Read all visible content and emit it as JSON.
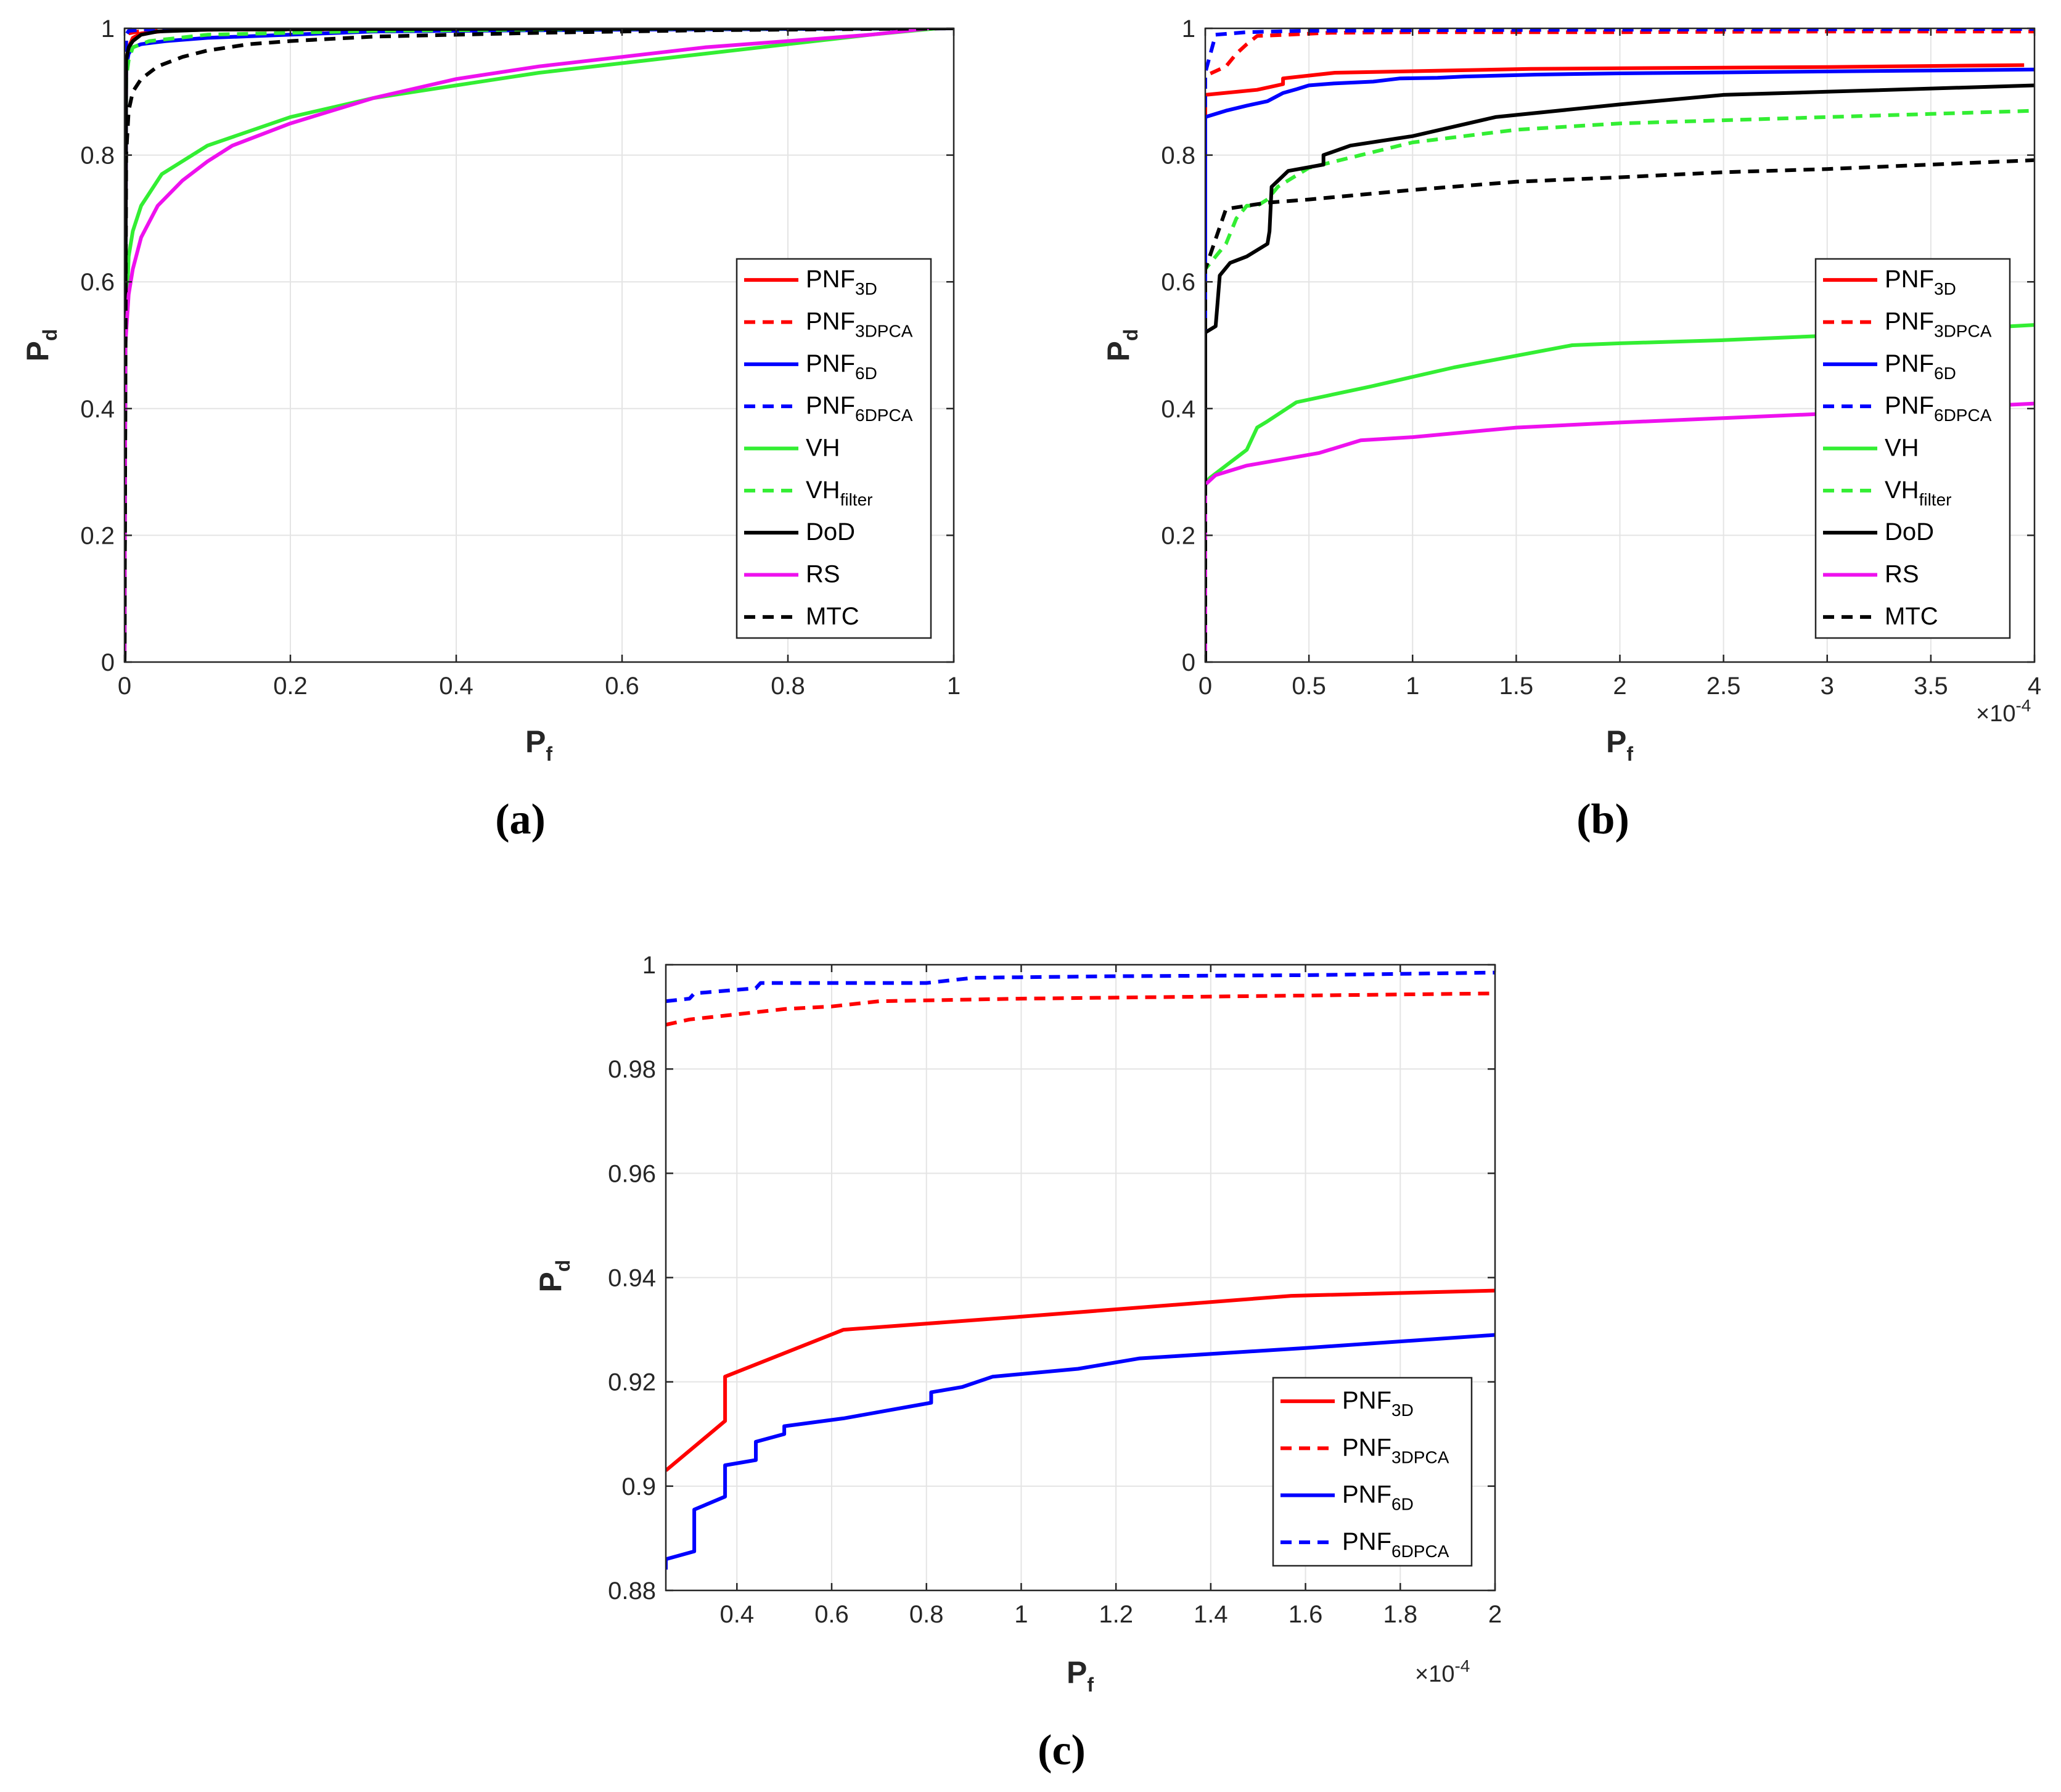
{
  "colors": {
    "red": "#ff0000",
    "blue": "#0000ff",
    "green": "#33ee33",
    "black": "#000000",
    "magenta": "#ee11ee",
    "grid": "#e4e4e4",
    "axis": "#262626"
  },
  "chart_data": [
    {
      "id": "a",
      "caption": "(a)",
      "type": "line",
      "xlabel": "P",
      "xlabel_sub": "f",
      "ylabel": "P",
      "ylabel_sub": "d",
      "xlim": [
        0,
        1
      ],
      "ylim": [
        0,
        1
      ],
      "xticks": [
        0,
        0.2,
        0.4,
        0.6,
        0.8,
        1
      ],
      "xtick_labels": [
        "0",
        "0.2",
        "0.4",
        "0.6",
        "0.8",
        "1"
      ],
      "yticks": [
        0,
        0.2,
        0.4,
        0.6,
        0.8,
        1
      ],
      "ytick_labels": [
        "0",
        "0.2",
        "0.4",
        "0.6",
        "0.8",
        "1"
      ],
      "exponent_label": "",
      "grid": true,
      "legend_position": "right",
      "series": [
        {
          "name": "PNF",
          "sub": "3D",
          "color": "red",
          "dashed": false,
          "x": [
            0,
            0.002,
            0.005,
            0.01,
            0.02,
            0.05,
            0.1,
            0.3,
            0.6,
            1
          ],
          "y": [
            0,
            0.95,
            0.97,
            0.985,
            0.992,
            0.996,
            0.998,
            0.999,
            1.0,
            1.0
          ]
        },
        {
          "name": "PNF",
          "sub": "3DPCA",
          "color": "red",
          "dashed": true,
          "x": [
            0,
            0.002,
            0.005,
            0.02,
            0.1,
            0.5,
            1
          ],
          "y": [
            0,
            0.985,
            0.992,
            0.996,
            0.998,
            0.999,
            1.0
          ]
        },
        {
          "name": "PNF",
          "sub": "6D",
          "color": "blue",
          "dashed": false,
          "x": [
            0,
            0.002,
            0.005,
            0.01,
            0.02,
            0.05,
            0.1,
            0.2,
            0.3,
            0.6,
            1
          ],
          "y": [
            0,
            0.94,
            0.96,
            0.97,
            0.975,
            0.98,
            0.985,
            0.99,
            0.995,
            0.998,
            1.0
          ]
        },
        {
          "name": "PNF",
          "sub": "6DPCA",
          "color": "blue",
          "dashed": true,
          "x": [
            0,
            0.002,
            0.005,
            0.02,
            0.1,
            0.5,
            1
          ],
          "y": [
            0,
            0.99,
            0.996,
            0.998,
            0.999,
            1.0,
            1.0
          ]
        },
        {
          "name": "VH",
          "sub": "",
          "color": "green",
          "dashed": false,
          "x": [
            0,
            0.001,
            0.005,
            0.01,
            0.02,
            0.045,
            0.1,
            0.2,
            0.3,
            0.4,
            0.5,
            0.6,
            0.7,
            0.8,
            0.9,
            0.98
          ],
          "y": [
            0,
            0.5,
            0.64,
            0.68,
            0.72,
            0.77,
            0.815,
            0.86,
            0.89,
            0.91,
            0.93,
            0.945,
            0.96,
            0.975,
            0.99,
            1.0
          ]
        },
        {
          "name": "VH",
          "sub": "filter",
          "color": "green",
          "dashed": true,
          "x": [
            0,
            0.002,
            0.005,
            0.01,
            0.03,
            0.1,
            0.3,
            0.6,
            1
          ],
          "y": [
            0,
            0.92,
            0.95,
            0.97,
            0.98,
            0.99,
            0.996,
            0.999,
            1.0
          ]
        },
        {
          "name": "DoD",
          "sub": "",
          "color": "black",
          "dashed": false,
          "x": [
            0,
            0.002,
            0.005,
            0.01,
            0.02,
            0.04,
            0.1,
            0.3,
            1
          ],
          "y": [
            0,
            0.95,
            0.97,
            0.98,
            0.99,
            0.995,
            0.998,
            0.999,
            1.0
          ]
        },
        {
          "name": "RS",
          "sub": "",
          "color": "magenta",
          "dashed": false,
          "x": [
            0,
            0.001,
            0.005,
            0.01,
            0.02,
            0.04,
            0.07,
            0.1,
            0.13,
            0.2,
            0.3,
            0.4,
            0.5,
            0.6,
            0.7,
            0.8,
            0.9,
            0.97
          ],
          "y": [
            0,
            0.5,
            0.58,
            0.62,
            0.67,
            0.72,
            0.76,
            0.79,
            0.815,
            0.85,
            0.89,
            0.92,
            0.94,
            0.955,
            0.97,
            0.98,
            0.99,
            1.0
          ]
        },
        {
          "name": "MTC",
          "sub": "",
          "color": "black",
          "dashed": true,
          "x": [
            0,
            0.002,
            0.005,
            0.01,
            0.02,
            0.04,
            0.07,
            0.1,
            0.15,
            0.2,
            0.3,
            0.5,
            0.7,
            1
          ],
          "y": [
            0,
            0.8,
            0.87,
            0.9,
            0.92,
            0.94,
            0.955,
            0.965,
            0.975,
            0.98,
            0.987,
            0.993,
            0.997,
            1.0
          ]
        }
      ]
    },
    {
      "id": "b",
      "caption": "(b)",
      "type": "line",
      "xlabel": "P",
      "xlabel_sub": "f",
      "ylabel": "P",
      "ylabel_sub": "d",
      "x_scale": "×10^-4",
      "xlim": [
        0,
        4
      ],
      "ylim": [
        0,
        1
      ],
      "xticks": [
        0,
        0.5,
        1,
        1.5,
        2,
        2.5,
        3,
        3.5,
        4
      ],
      "xtick_labels": [
        "0",
        "0.5",
        "1",
        "1.5",
        "2",
        "2.5",
        "3",
        "3.5",
        "4"
      ],
      "yticks": [
        0,
        0.2,
        0.4,
        0.6,
        0.8,
        1
      ],
      "ytick_labels": [
        "0",
        "0.2",
        "0.4",
        "0.6",
        "0.8",
        "1"
      ],
      "exponent_label": "×10",
      "exponent_power": "-4",
      "grid": true,
      "legend_position": "right",
      "series": [
        {
          "name": "PNF",
          "sub": "3D",
          "color": "red",
          "dashed": false,
          "x": [
            0,
            0,
            0.25,
            0.375,
            0.375,
            0.625,
            1.57,
            2,
            3,
            3.95
          ],
          "y": [
            0,
            0.895,
            0.903,
            0.912,
            0.921,
            0.93,
            0.936,
            0.937,
            0.939,
            0.942
          ]
        },
        {
          "name": "PNF",
          "sub": "3DPCA",
          "color": "red",
          "dashed": true,
          "x": [
            0,
            0,
            0.1,
            0.15,
            0.2,
            0.25,
            0.4,
            0.6,
            1,
            2,
            3,
            4
          ],
          "y": [
            0,
            0.925,
            0.94,
            0.96,
            0.975,
            0.988,
            0.99,
            0.993,
            0.994,
            0.994,
            0.995,
            0.995
          ]
        },
        {
          "name": "PNF",
          "sub": "6D",
          "color": "blue",
          "dashed": false,
          "x": [
            0,
            0,
            0.05,
            0.1,
            0.2,
            0.3,
            0.375,
            0.44,
            0.5,
            0.62,
            0.81,
            0.94,
            1.12,
            1.25,
            1.6,
            2,
            3,
            4
          ],
          "y": [
            0,
            0.86,
            0.865,
            0.87,
            0.878,
            0.885,
            0.898,
            0.904,
            0.91,
            0.913,
            0.916,
            0.921,
            0.922,
            0.924,
            0.927,
            0.929,
            0.932,
            0.935
          ]
        },
        {
          "name": "PNF",
          "sub": "6DPCA",
          "color": "blue",
          "dashed": true,
          "x": [
            0,
            0,
            0.05,
            0.2,
            0.45,
            1,
            2,
            4
          ],
          "y": [
            0,
            0.93,
            0.99,
            0.994,
            0.996,
            0.997,
            0.998,
            0.999
          ]
        },
        {
          "name": "VH",
          "sub": "",
          "color": "green",
          "dashed": false,
          "x": [
            0,
            0.02,
            0.1,
            0.2,
            0.25,
            0.3,
            0.44,
            0.8,
            1.2,
            1.77,
            2,
            2.5,
            3,
            3.5,
            4
          ],
          "y": [
            0.28,
            0.29,
            0.31,
            0.335,
            0.37,
            0.38,
            0.41,
            0.435,
            0.465,
            0.5,
            0.503,
            0.508,
            0.515,
            0.523,
            0.532
          ]
        },
        {
          "name": "VH",
          "sub": "filter",
          "color": "green",
          "dashed": true,
          "x": [
            0,
            0,
            0.1,
            0.15,
            0.2,
            0.25,
            0.3,
            0.35,
            0.5,
            0.75,
            1,
            1.5,
            2,
            2.5,
            3,
            3.5,
            4
          ],
          "y": [
            0,
            0.62,
            0.66,
            0.7,
            0.72,
            0.72,
            0.73,
            0.75,
            0.78,
            0.8,
            0.82,
            0.84,
            0.85,
            0.855,
            0.86,
            0.865,
            0.87
          ]
        },
        {
          "name": "DoD",
          "sub": "",
          "color": "black",
          "dashed": false,
          "x": [
            0,
            0,
            0.05,
            0.06,
            0.07,
            0.12,
            0.2,
            0.3,
            0.31,
            0.32,
            0.4,
            0.57,
            0.57,
            0.7,
            1,
            1.4,
            2,
            2.5,
            3,
            4
          ],
          "y": [
            0,
            0.52,
            0.53,
            0.57,
            0.61,
            0.63,
            0.64,
            0.66,
            0.68,
            0.75,
            0.775,
            0.785,
            0.8,
            0.815,
            0.83,
            0.86,
            0.88,
            0.895,
            0.9,
            0.91
          ]
        },
        {
          "name": "RS",
          "sub": "",
          "color": "magenta",
          "dashed": false,
          "x": [
            0,
            0,
            0.05,
            0.2,
            0.55,
            0.75,
            1,
            1.5,
            2,
            2.5,
            3,
            3.5,
            4
          ],
          "y": [
            0,
            0.28,
            0.295,
            0.31,
            0.33,
            0.35,
            0.355,
            0.37,
            0.378,
            0.385,
            0.392,
            0.4,
            0.408
          ]
        },
        {
          "name": "MTC",
          "sub": "",
          "color": "black",
          "dashed": true,
          "x": [
            0,
            0,
            0.1,
            0.2,
            0.3,
            0.5,
            1,
            1.5,
            2,
            2.5,
            3,
            3.5,
            4
          ],
          "y": [
            0,
            0.62,
            0.715,
            0.72,
            0.725,
            0.73,
            0.745,
            0.758,
            0.765,
            0.773,
            0.778,
            0.785,
            0.792
          ]
        }
      ]
    },
    {
      "id": "c",
      "caption": "(c)",
      "type": "line",
      "xlabel": "P",
      "xlabel_sub": "f",
      "ylabel": "P",
      "ylabel_sub": "d",
      "x_scale": "×10^-4",
      "xlim": [
        0.25,
        2
      ],
      "ylim": [
        0.88,
        1
      ],
      "xticks": [
        0.4,
        0.6,
        0.8,
        1,
        1.2,
        1.4,
        1.6,
        1.8,
        2
      ],
      "xtick_labels": [
        "0.4",
        "0.6",
        "0.8",
        "1",
        "1.2",
        "1.4",
        "1.6",
        "1.8",
        "2"
      ],
      "yticks": [
        0.88,
        0.9,
        0.92,
        0.94,
        0.96,
        0.98,
        1
      ],
      "ytick_labels": [
        "0.88",
        "0.9",
        "0.92",
        "0.94",
        "0.96",
        "0.98",
        "1"
      ],
      "exponent_label": "×10",
      "exponent_power": "-4",
      "grid": true,
      "legend_position": "bottom-right",
      "series": [
        {
          "name": "PNF",
          "sub": "3D",
          "color": "red",
          "dashed": false,
          "x": [
            0.25,
            0.375,
            0.375,
            0.625,
            1,
            1.57,
            2
          ],
          "y": [
            0.903,
            0.9125,
            0.921,
            0.93,
            0.9325,
            0.9365,
            0.9375
          ]
        },
        {
          "name": "PNF",
          "sub": "3DPCA",
          "color": "red",
          "dashed": true,
          "x": [
            0.25,
            0.3,
            0.4,
            0.5,
            0.6,
            0.7,
            1,
            1.5,
            2
          ],
          "y": [
            0.9885,
            0.9895,
            0.9905,
            0.9915,
            0.992,
            0.993,
            0.9935,
            0.994,
            0.9945
          ]
        },
        {
          "name": "PNF",
          "sub": "6D",
          "color": "blue",
          "dashed": false,
          "x": [
            0.25,
            0.25,
            0.31,
            0.31,
            0.375,
            0.375,
            0.44,
            0.44,
            0.5,
            0.5,
            0.625,
            0.81,
            0.81,
            0.875,
            0.94,
            1.12,
            1.25,
            1.6,
            2
          ],
          "y": [
            0.884,
            0.886,
            0.8875,
            0.8955,
            0.898,
            0.904,
            0.905,
            0.9085,
            0.91,
            0.9115,
            0.913,
            0.916,
            0.918,
            0.919,
            0.921,
            0.9225,
            0.9245,
            0.9265,
            0.929
          ]
        },
        {
          "name": "PNF",
          "sub": "6DPCA",
          "color": "blue",
          "dashed": true,
          "x": [
            0.25,
            0.3,
            0.31,
            0.44,
            0.45,
            0.8,
            0.9,
            1.2,
            1.6,
            2
          ],
          "y": [
            0.993,
            0.9935,
            0.9945,
            0.9955,
            0.9965,
            0.9965,
            0.9975,
            0.9978,
            0.998,
            0.9985
          ]
        }
      ]
    }
  ]
}
